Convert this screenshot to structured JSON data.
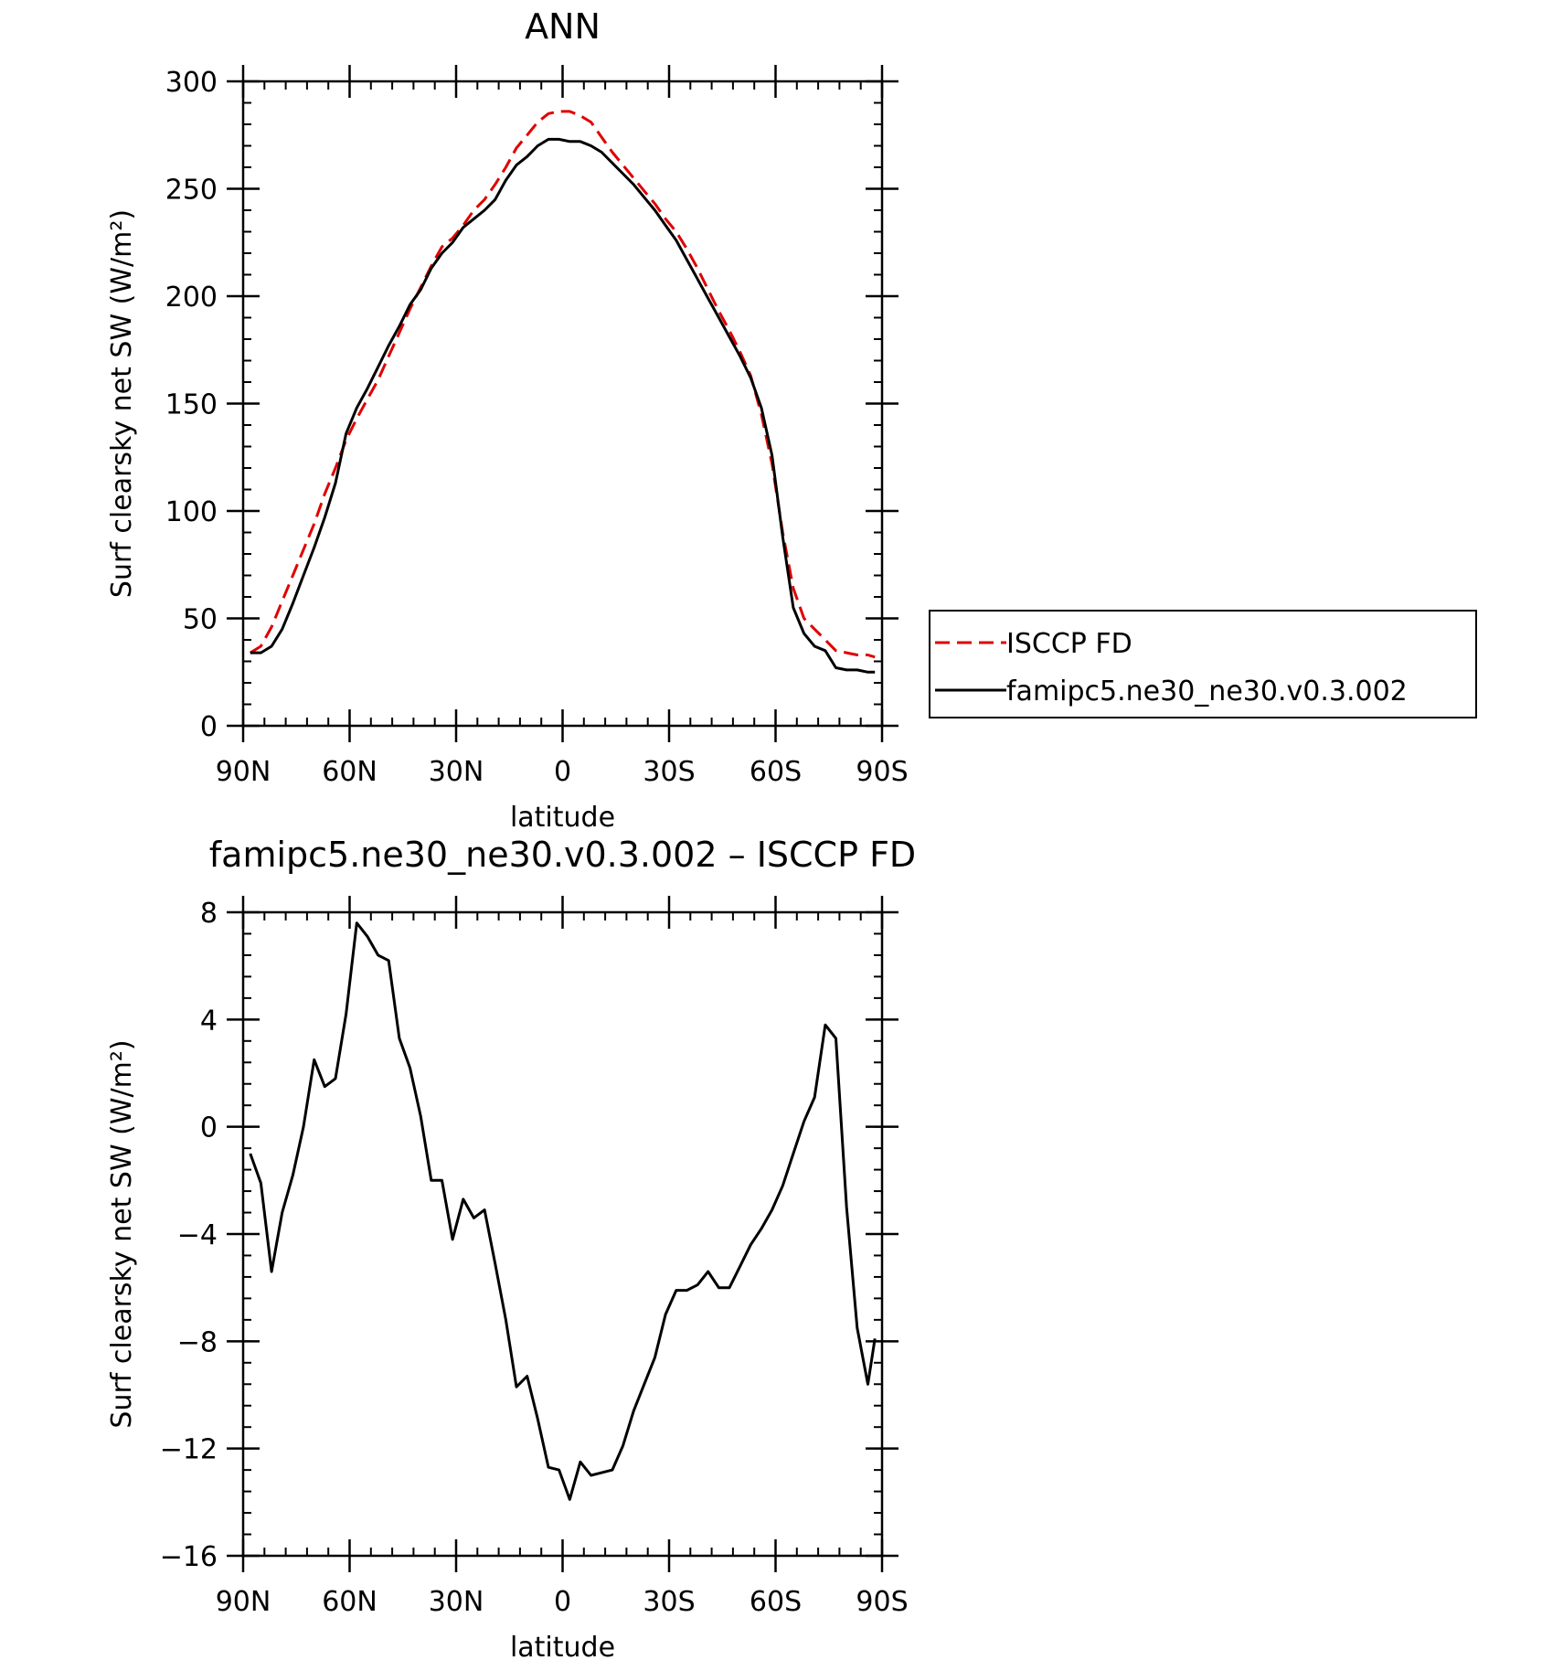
{
  "chart_data": [
    {
      "type": "line",
      "title": "ANN",
      "xlabel": "latitude",
      "ylabel": "Surf clearsky net SW (W/m²)",
      "xlim": [
        90,
        -90
      ],
      "ylim": [
        0,
        300
      ],
      "xticks": [
        {
          "value": 90,
          "label": "90N"
        },
        {
          "value": 60,
          "label": "60N"
        },
        {
          "value": 30,
          "label": "30N"
        },
        {
          "value": 0,
          "label": "0"
        },
        {
          "value": -30,
          "label": "30S"
        },
        {
          "value": -60,
          "label": "60S"
        },
        {
          "value": -90,
          "label": "90S"
        }
      ],
      "yticks": [
        {
          "value": 0,
          "label": "0"
        },
        {
          "value": 50,
          "label": "50"
        },
        {
          "value": 100,
          "label": "100"
        },
        {
          "value": 150,
          "label": "150"
        },
        {
          "value": 200,
          "label": "200"
        },
        {
          "value": 250,
          "label": "250"
        },
        {
          "value": 300,
          "label": "300"
        }
      ],
      "grid": false,
      "legend_position": "right",
      "series": [
        {
          "name": "ISCCP FD",
          "color": "#e00000",
          "dash": "dashed",
          "x": [
            88,
            85,
            82,
            79,
            76,
            73,
            70,
            67,
            64,
            61,
            58,
            55,
            52,
            49,
            46,
            43,
            40,
            37,
            34,
            31,
            28,
            25,
            22,
            19,
            16,
            13,
            10,
            7,
            4,
            1,
            -2,
            -5,
            -8,
            -11,
            -14,
            -17,
            -20,
            -23,
            -26,
            -29,
            -32,
            -35,
            -38,
            -41,
            -44,
            -47,
            -50,
            -53,
            -56,
            -59,
            -62,
            -65,
            -68,
            -71,
            -74,
            -77,
            -80,
            -83,
            -86,
            -88
          ],
          "y": [
            34,
            37,
            46,
            58,
            70,
            82,
            94,
            108,
            120,
            133,
            143,
            152,
            161,
            172,
            183,
            194,
            204,
            214,
            223,
            227,
            233,
            240,
            245,
            252,
            260,
            269,
            275,
            281,
            285,
            286,
            286,
            284,
            281,
            274,
            267,
            261,
            255,
            249,
            243,
            236,
            230,
            222,
            213,
            203,
            193,
            184,
            174,
            163,
            145,
            122,
            90,
            64,
            50,
            45,
            40,
            35,
            34,
            33,
            33,
            32
          ]
        },
        {
          "name": "famipc5.ne30_ne30.v0.3.002",
          "color": "#000000",
          "dash": "solid",
          "x": [
            88,
            85,
            82,
            79,
            76,
            73,
            70,
            67,
            64,
            61,
            58,
            55,
            52,
            49,
            46,
            43,
            40,
            37,
            34,
            31,
            28,
            25,
            22,
            19,
            16,
            13,
            10,
            7,
            4,
            1,
            -2,
            -5,
            -8,
            -11,
            -14,
            -17,
            -20,
            -23,
            -26,
            -29,
            -32,
            -35,
            -38,
            -41,
            -44,
            -47,
            -50,
            -53,
            -56,
            -59,
            -62,
            -65,
            -68,
            -71,
            -74,
            -77,
            -80,
            -83,
            -86,
            -88
          ],
          "y": [
            34,
            34,
            37,
            45,
            57,
            70,
            83,
            97,
            113,
            136,
            148,
            157,
            167,
            177,
            186,
            196,
            203,
            213,
            220,
            225,
            232,
            236,
            240,
            245,
            254,
            261,
            265,
            270,
            273,
            273,
            272,
            272,
            270,
            267,
            262,
            257,
            252,
            246,
            240,
            233,
            226,
            217,
            208,
            199,
            190,
            181,
            172,
            162,
            148,
            126,
            88,
            55,
            43,
            37,
            35,
            27,
            26,
            26,
            25,
            25
          ]
        }
      ]
    },
    {
      "type": "line",
      "title": "famipc5.ne30_ne30.v0.3.002 – ISCCP FD",
      "xlabel": "latitude",
      "ylabel": "Surf clearsky net SW (W/m²)",
      "xlim": [
        90,
        -90
      ],
      "ylim": [
        -16,
        8
      ],
      "xticks": [
        {
          "value": 90,
          "label": "90N"
        },
        {
          "value": 60,
          "label": "60N"
        },
        {
          "value": 30,
          "label": "30N"
        },
        {
          "value": 0,
          "label": "0"
        },
        {
          "value": -30,
          "label": "30S"
        },
        {
          "value": -60,
          "label": "60S"
        },
        {
          "value": -90,
          "label": "90S"
        }
      ],
      "yticks": [
        {
          "value": -16,
          "label": "−16"
        },
        {
          "value": -12,
          "label": "−12"
        },
        {
          "value": -8,
          "label": "−8"
        },
        {
          "value": -4,
          "label": "−4"
        },
        {
          "value": 0,
          "label": "0"
        },
        {
          "value": 4,
          "label": "4"
        },
        {
          "value": 8,
          "label": "8"
        }
      ],
      "grid": false,
      "series": [
        {
          "color": "#000000",
          "dash": "solid",
          "x": [
            88,
            85,
            82,
            79,
            76,
            73,
            70,
            67,
            64,
            61,
            58,
            55,
            52,
            49,
            46,
            43,
            40,
            37,
            34,
            31,
            28,
            25,
            22,
            19,
            16,
            13,
            10,
            7,
            4,
            1,
            -2,
            -5,
            -8,
            -11,
            -14,
            -17,
            -20,
            -23,
            -26,
            -29,
            -32,
            -35,
            -38,
            -41,
            -44,
            -47,
            -50,
            -53,
            -56,
            -59,
            -62,
            -65,
            -68,
            -71,
            -74,
            -77,
            -80,
            -83,
            -86,
            -88
          ],
          "y": [
            -1.0,
            -2.1,
            -5.4,
            -3.2,
            -1.8,
            0.0,
            2.5,
            1.5,
            1.8,
            4.2,
            7.6,
            7.1,
            6.4,
            6.2,
            3.3,
            2.2,
            0.4,
            -2.0,
            -2.0,
            -4.2,
            -2.7,
            -3.4,
            -3.1,
            -5.1,
            -7.2,
            -9.7,
            -9.3,
            -10.9,
            -12.7,
            -12.8,
            -13.9,
            -12.5,
            -13.0,
            -12.9,
            -12.8,
            -11.9,
            -10.6,
            -9.6,
            -8.6,
            -7.0,
            -6.1,
            -6.1,
            -5.9,
            -5.4,
            -6.0,
            -6.0,
            -5.2,
            -4.4,
            -3.8,
            -3.1,
            -2.2,
            -1.0,
            0.2,
            1.1,
            3.8,
            3.3,
            -3.0,
            -7.5,
            -9.6,
            -7.9
          ]
        }
      ]
    }
  ]
}
